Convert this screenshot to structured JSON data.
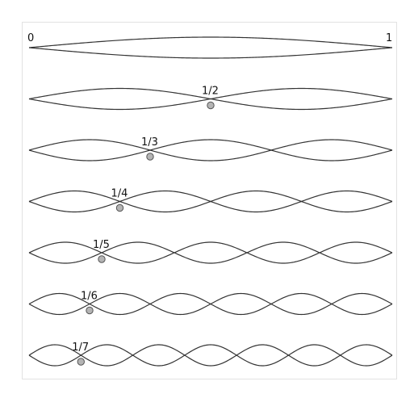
{
  "diagram": {
    "start_label": "0",
    "end_label": "1",
    "colors": {
      "curve": "#333333",
      "node_fill": "#b4b4b4",
      "node_stroke": "#555555",
      "frame_border": "#e2e2e2"
    },
    "modes": [
      {
        "harmonic": 1,
        "node_label": ""
      },
      {
        "harmonic": 2,
        "node_label": "1/2"
      },
      {
        "harmonic": 3,
        "node_label": "1/3"
      },
      {
        "harmonic": 4,
        "node_label": "1/4"
      },
      {
        "harmonic": 5,
        "node_label": "1/5"
      },
      {
        "harmonic": 6,
        "node_label": "1/6"
      },
      {
        "harmonic": 7,
        "node_label": "1/7"
      }
    ]
  }
}
